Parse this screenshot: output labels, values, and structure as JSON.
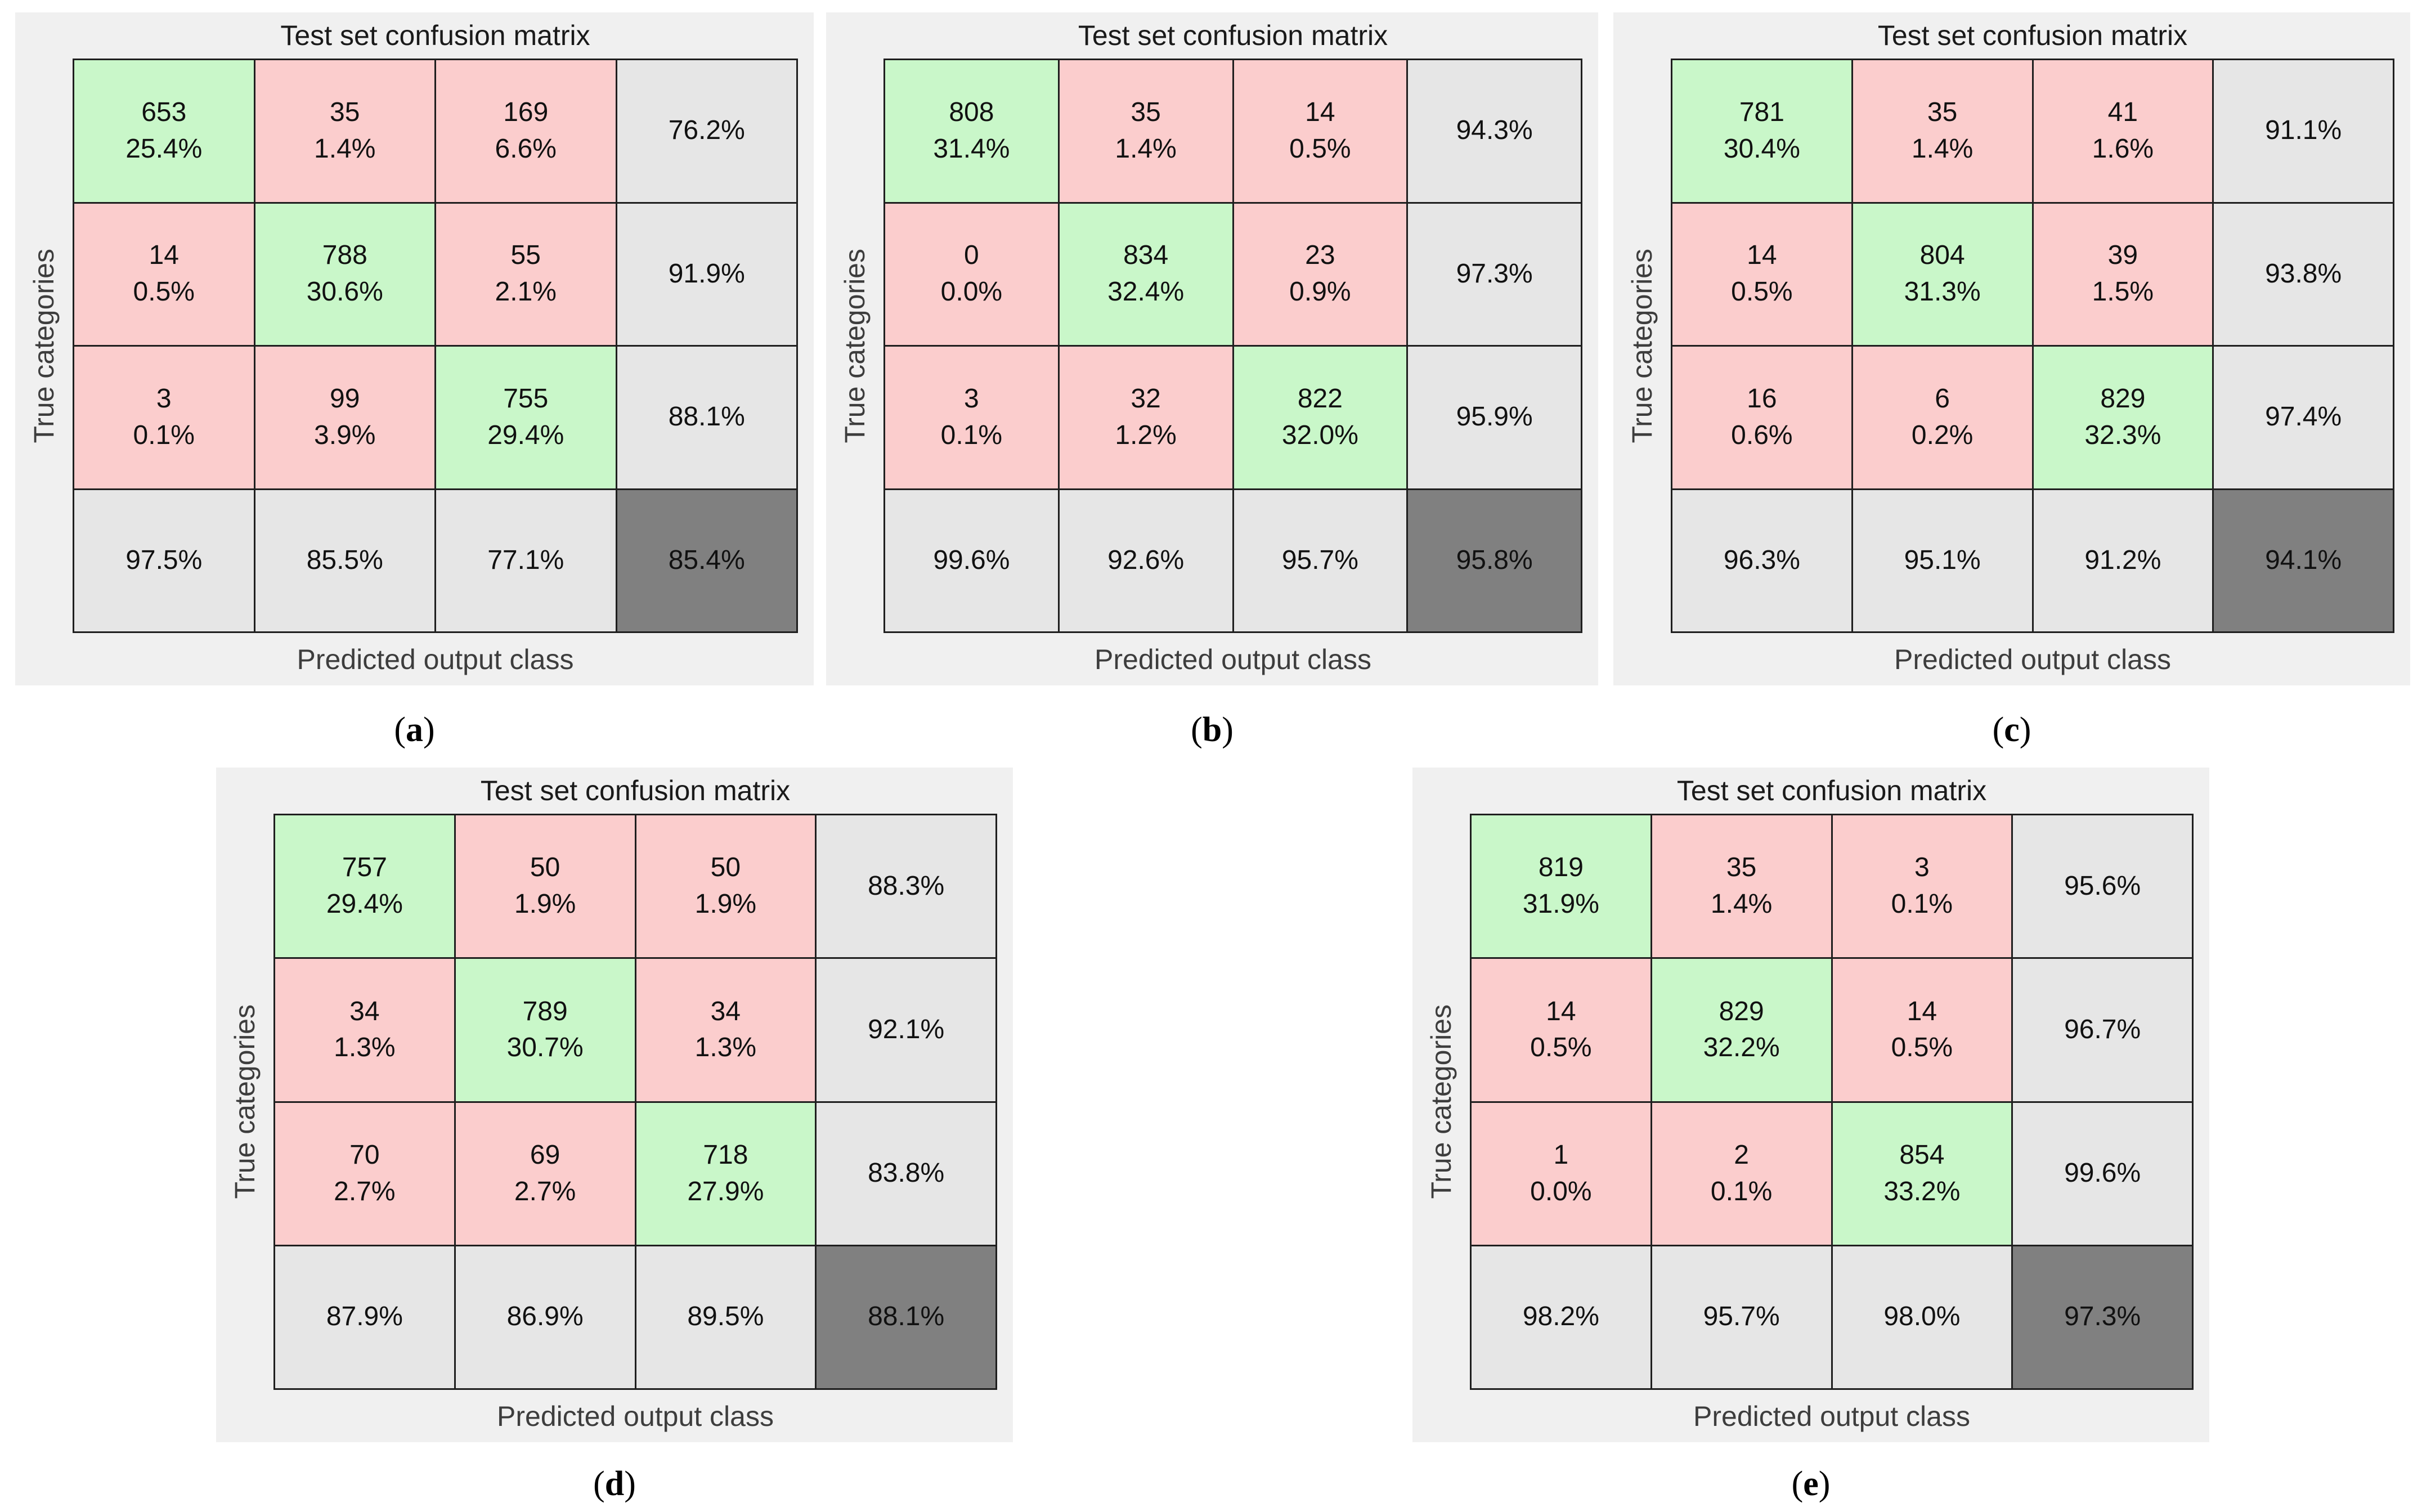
{
  "figure": {
    "title": "Test set confusion matrix",
    "ylabel": "True categories",
    "xlabel": "Predicted output class"
  },
  "colors": {
    "page_background": "#ffffff",
    "panel_background": "#f0f0f0",
    "correct_cell_green": "#c9f7c9",
    "wrong_cell_pink": "#fbcdcd",
    "summary_cell_gray": "#e6e6e6",
    "total_cell_dark_gray": "#808080",
    "grid_line": "#1f1f1f",
    "axis_label_text": "#3d3d3d",
    "cell_text": "#111111"
  },
  "chart_data": [
    {
      "type": "heatmap",
      "caption": {
        "open": "(",
        "letter": "a",
        "close": ")"
      },
      "title": "Test set confusion matrix",
      "xlabel": "Predicted output class",
      "ylabel": "True categories",
      "overall_accuracy": "85.4%",
      "cells": [
        [
          {
            "count": "653",
            "pct": "25.4%",
            "kind": "correct"
          },
          {
            "count": "35",
            "pct": "1.4%",
            "kind": "wrong"
          },
          {
            "count": "169",
            "pct": "6.6%",
            "kind": "wrong"
          },
          {
            "pct": "76.2%",
            "kind": "summary"
          }
        ],
        [
          {
            "count": "14",
            "pct": "0.5%",
            "kind": "wrong"
          },
          {
            "count": "788",
            "pct": "30.6%",
            "kind": "correct"
          },
          {
            "count": "55",
            "pct": "2.1%",
            "kind": "wrong"
          },
          {
            "pct": "91.9%",
            "kind": "summary"
          }
        ],
        [
          {
            "count": "3",
            "pct": "0.1%",
            "kind": "wrong"
          },
          {
            "count": "99",
            "pct": "3.9%",
            "kind": "wrong"
          },
          {
            "count": "755",
            "pct": "29.4%",
            "kind": "correct"
          },
          {
            "pct": "88.1%",
            "kind": "summary"
          }
        ],
        [
          {
            "pct": "97.5%",
            "kind": "summary"
          },
          {
            "pct": "85.5%",
            "kind": "summary"
          },
          {
            "pct": "77.1%",
            "kind": "summary"
          },
          {
            "pct": "85.4%",
            "kind": "total"
          }
        ]
      ]
    },
    {
      "type": "heatmap",
      "caption": {
        "open": "(",
        "letter": "b",
        "close": ")"
      },
      "title": "Test set confusion matrix",
      "xlabel": "Predicted output class",
      "ylabel": "True categories",
      "overall_accuracy": "95.8%",
      "cells": [
        [
          {
            "count": "808",
            "pct": "31.4%",
            "kind": "correct"
          },
          {
            "count": "35",
            "pct": "1.4%",
            "kind": "wrong"
          },
          {
            "count": "14",
            "pct": "0.5%",
            "kind": "wrong"
          },
          {
            "pct": "94.3%",
            "kind": "summary"
          }
        ],
        [
          {
            "count": "0",
            "pct": "0.0%",
            "kind": "wrong"
          },
          {
            "count": "834",
            "pct": "32.4%",
            "kind": "correct"
          },
          {
            "count": "23",
            "pct": "0.9%",
            "kind": "wrong"
          },
          {
            "pct": "97.3%",
            "kind": "summary"
          }
        ],
        [
          {
            "count": "3",
            "pct": "0.1%",
            "kind": "wrong"
          },
          {
            "count": "32",
            "pct": "1.2%",
            "kind": "wrong"
          },
          {
            "count": "822",
            "pct": "32.0%",
            "kind": "correct"
          },
          {
            "pct": "95.9%",
            "kind": "summary"
          }
        ],
        [
          {
            "pct": "99.6%",
            "kind": "summary"
          },
          {
            "pct": "92.6%",
            "kind": "summary"
          },
          {
            "pct": "95.7%",
            "kind": "summary"
          },
          {
            "pct": "95.8%",
            "kind": "total"
          }
        ]
      ]
    },
    {
      "type": "heatmap",
      "caption": {
        "open": "(",
        "letter": "c",
        "close": ")"
      },
      "title": "Test set confusion matrix",
      "xlabel": "Predicted output class",
      "ylabel": "True categories",
      "overall_accuracy": "94.1%",
      "cells": [
        [
          {
            "count": "781",
            "pct": "30.4%",
            "kind": "correct"
          },
          {
            "count": "35",
            "pct": "1.4%",
            "kind": "wrong"
          },
          {
            "count": "41",
            "pct": "1.6%",
            "kind": "wrong"
          },
          {
            "pct": "91.1%",
            "kind": "summary"
          }
        ],
        [
          {
            "count": "14",
            "pct": "0.5%",
            "kind": "wrong"
          },
          {
            "count": "804",
            "pct": "31.3%",
            "kind": "correct"
          },
          {
            "count": "39",
            "pct": "1.5%",
            "kind": "wrong"
          },
          {
            "pct": "93.8%",
            "kind": "summary"
          }
        ],
        [
          {
            "count": "16",
            "pct": "0.6%",
            "kind": "wrong"
          },
          {
            "count": "6",
            "pct": "0.2%",
            "kind": "wrong"
          },
          {
            "count": "829",
            "pct": "32.3%",
            "kind": "correct"
          },
          {
            "pct": "97.4%",
            "kind": "summary"
          }
        ],
        [
          {
            "pct": "96.3%",
            "kind": "summary"
          },
          {
            "pct": "95.1%",
            "kind": "summary"
          },
          {
            "pct": "91.2%",
            "kind": "summary"
          },
          {
            "pct": "94.1%",
            "kind": "total"
          }
        ]
      ]
    },
    {
      "type": "heatmap",
      "caption": {
        "open": "(",
        "letter": "d",
        "close": ")"
      },
      "title": "Test set confusion matrix",
      "xlabel": "Predicted output class",
      "ylabel": "True categories",
      "overall_accuracy": "88.1%",
      "cells": [
        [
          {
            "count": "757",
            "pct": "29.4%",
            "kind": "correct"
          },
          {
            "count": "50",
            "pct": "1.9%",
            "kind": "wrong"
          },
          {
            "count": "50",
            "pct": "1.9%",
            "kind": "wrong"
          },
          {
            "pct": "88.3%",
            "kind": "summary"
          }
        ],
        [
          {
            "count": "34",
            "pct": "1.3%",
            "kind": "wrong"
          },
          {
            "count": "789",
            "pct": "30.7%",
            "kind": "correct"
          },
          {
            "count": "34",
            "pct": "1.3%",
            "kind": "wrong"
          },
          {
            "pct": "92.1%",
            "kind": "summary"
          }
        ],
        [
          {
            "count": "70",
            "pct": "2.7%",
            "kind": "wrong"
          },
          {
            "count": "69",
            "pct": "2.7%",
            "kind": "wrong"
          },
          {
            "count": "718",
            "pct": "27.9%",
            "kind": "correct"
          },
          {
            "pct": "83.8%",
            "kind": "summary"
          }
        ],
        [
          {
            "pct": "87.9%",
            "kind": "summary"
          },
          {
            "pct": "86.9%",
            "kind": "summary"
          },
          {
            "pct": "89.5%",
            "kind": "summary"
          },
          {
            "pct": "88.1%",
            "kind": "total"
          }
        ]
      ]
    },
    {
      "type": "heatmap",
      "caption": {
        "open": "(",
        "letter": "e",
        "close": ")"
      },
      "title": "Test set confusion matrix",
      "xlabel": "Predicted output class",
      "ylabel": "True categories",
      "overall_accuracy": "97.3%",
      "cells": [
        [
          {
            "count": "819",
            "pct": "31.9%",
            "kind": "correct"
          },
          {
            "count": "35",
            "pct": "1.4%",
            "kind": "wrong"
          },
          {
            "count": "3",
            "pct": "0.1%",
            "kind": "wrong"
          },
          {
            "pct": "95.6%",
            "kind": "summary"
          }
        ],
        [
          {
            "count": "14",
            "pct": "0.5%",
            "kind": "wrong"
          },
          {
            "count": "829",
            "pct": "32.2%",
            "kind": "correct"
          },
          {
            "count": "14",
            "pct": "0.5%",
            "kind": "wrong"
          },
          {
            "pct": "96.7%",
            "kind": "summary"
          }
        ],
        [
          {
            "count": "1",
            "pct": "0.0%",
            "kind": "wrong"
          },
          {
            "count": "2",
            "pct": "0.1%",
            "kind": "wrong"
          },
          {
            "count": "854",
            "pct": "33.2%",
            "kind": "correct"
          },
          {
            "pct": "99.6%",
            "kind": "summary"
          }
        ],
        [
          {
            "pct": "98.2%",
            "kind": "summary"
          },
          {
            "pct": "95.7%",
            "kind": "summary"
          },
          {
            "pct": "98.0%",
            "kind": "summary"
          },
          {
            "pct": "97.3%",
            "kind": "total"
          }
        ]
      ]
    }
  ]
}
